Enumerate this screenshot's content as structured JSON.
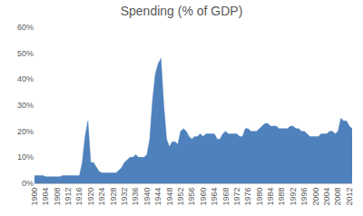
{
  "chart_data": {
    "type": "area",
    "title": "Spending (% of GDP)",
    "color": "#4f81bd",
    "grid": false,
    "x": [
      1900,
      1901,
      1902,
      1903,
      1904,
      1905,
      1906,
      1907,
      1908,
      1909,
      1910,
      1911,
      1912,
      1913,
      1914,
      1915,
      1916,
      1917,
      1918,
      1919,
      1920,
      1921,
      1922,
      1923,
      1924,
      1925,
      1926,
      1927,
      1928,
      1929,
      1930,
      1931,
      1932,
      1933,
      1934,
      1935,
      1936,
      1937,
      1938,
      1939,
      1940,
      1941,
      1942,
      1943,
      1944,
      1945,
      1946,
      1947,
      1948,
      1949,
      1950,
      1951,
      1952,
      1953,
      1954,
      1955,
      1956,
      1957,
      1958,
      1959,
      1960,
      1961,
      1962,
      1963,
      1964,
      1965,
      1966,
      1967,
      1968,
      1969,
      1970,
      1971,
      1972,
      1973,
      1974,
      1975,
      1976,
      1977,
      1978,
      1979,
      1980,
      1981,
      1982,
      1983,
      1984,
      1985,
      1986,
      1987,
      1988,
      1989,
      1990,
      1991,
      1992,
      1993,
      1994,
      1995,
      1996,
      1997,
      1998,
      1999,
      2000,
      2001,
      2002,
      2003,
      2004,
      2005,
      2006,
      2007,
      2008,
      2009,
      2010,
      2011,
      2012,
      2013
    ],
    "values": [
      3,
      3,
      3,
      3,
      2.5,
      2.5,
      2.5,
      2.5,
      2.5,
      2.5,
      3,
      3,
      3,
      3,
      3,
      3,
      3,
      8,
      18,
      24,
      8,
      8,
      6,
      4.5,
      4,
      4,
      4,
      4,
      4,
      4,
      5,
      6,
      8,
      9,
      10,
      10,
      11,
      10,
      10,
      10,
      11,
      17,
      32,
      42,
      46,
      48,
      30,
      17,
      14,
      16,
      16,
      15,
      20,
      21,
      20,
      18,
      17,
      18,
      18,
      19,
      18,
      19,
      19,
      19,
      19,
      17,
      17,
      19,
      20,
      19,
      19,
      19,
      19,
      18,
      18,
      21,
      21,
      20,
      20,
      20,
      21,
      22,
      23,
      23,
      22,
      22,
      22,
      21,
      21,
      21,
      21,
      22,
      22,
      21,
      21,
      20,
      20,
      19,
      18,
      18,
      18,
      18,
      19,
      19,
      19,
      20,
      20,
      19,
      20,
      25,
      24,
      24,
      22,
      21
    ],
    "xlim": [
      1900,
      2013
    ],
    "xticks": [
      1900,
      1904,
      1908,
      1912,
      1916,
      1920,
      1924,
      1928,
      1932,
      1936,
      1940,
      1944,
      1948,
      1952,
      1956,
      1960,
      1964,
      1968,
      1972,
      1976,
      1980,
      1984,
      1988,
      1992,
      1996,
      2000,
      2004,
      2008,
      2012
    ],
    "ylim": [
      0,
      60
    ],
    "yticks": [
      {
        "value": 0,
        "label": "0%"
      },
      {
        "value": 10,
        "label": "10%"
      },
      {
        "value": 20,
        "label": "20%"
      },
      {
        "value": 30,
        "label": "30%"
      },
      {
        "value": 40,
        "label": "40%"
      },
      {
        "value": 50,
        "label": "50%"
      },
      {
        "value": 60,
        "label": "60%"
      }
    ]
  }
}
